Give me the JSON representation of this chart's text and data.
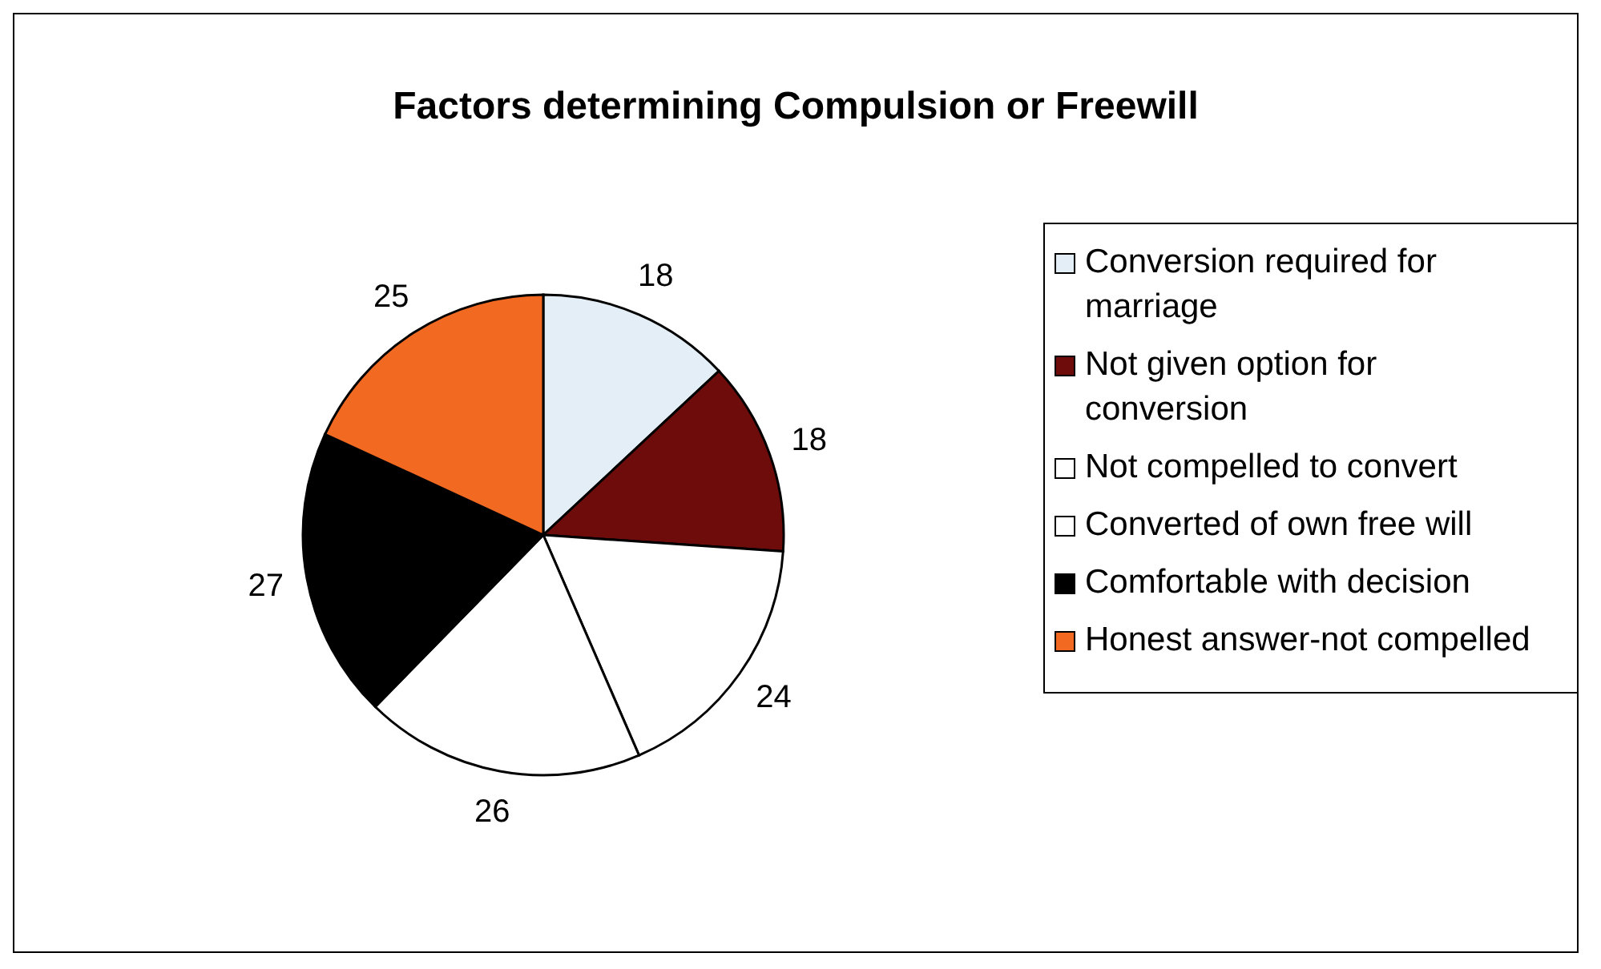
{
  "chart_data": {
    "type": "pie",
    "title": "Factors determining Compulsion or Freewill",
    "categories": [
      "Conversion required for marriage",
      "Not given option for conversion",
      "Not compelled to convert",
      "Converted of own free will",
      "Comfortable with decision",
      "Honest answer-not compelled"
    ],
    "values": [
      18,
      18,
      24,
      26,
      27,
      25
    ],
    "colors": [
      "#e4eef6",
      "#6e0c0c",
      "#ffffff",
      "#ffffff",
      "#000000",
      "#f26a22"
    ],
    "data_labels": true,
    "legend": "right"
  }
}
